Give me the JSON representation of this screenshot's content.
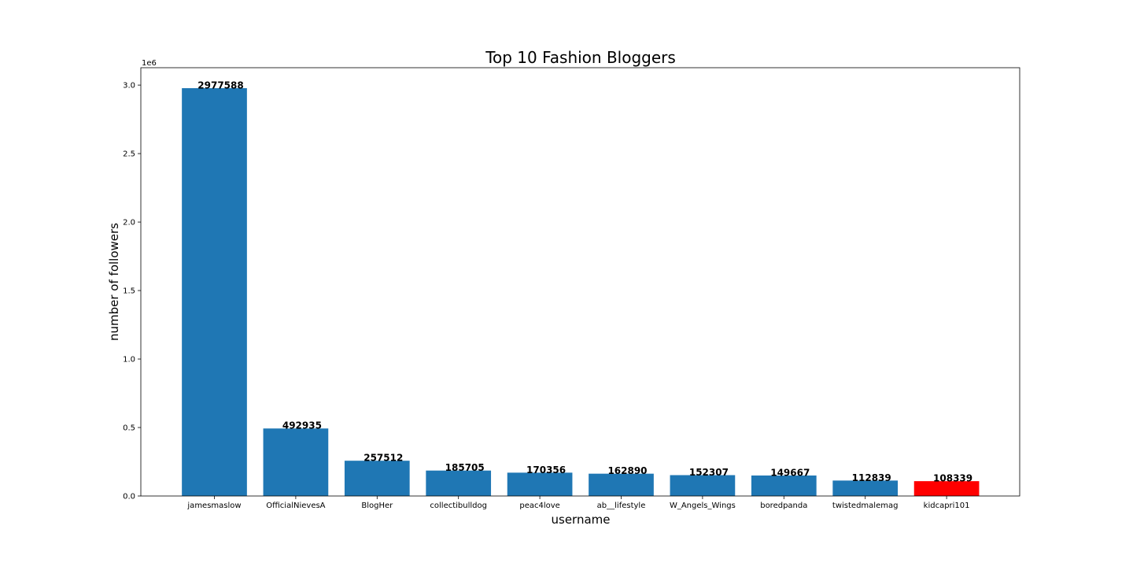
{
  "chart_data": {
    "type": "bar",
    "title": "Top 10 Fashion Bloggers",
    "xlabel": "username",
    "ylabel": "number of followers",
    "y_offset_label": "1e6",
    "categories": [
      "jamesmaslow",
      "OfficialNievesA",
      "BlogHer",
      "collectibulldog",
      "peac4love",
      "ab__lifestyle",
      "W_Angels_Wings",
      "boredpanda",
      "twistedmalemag",
      "kidcapri101"
    ],
    "values": [
      2977588,
      492935,
      257512,
      185705,
      170356,
      162890,
      152307,
      149667,
      112839,
      108339
    ],
    "data_labels": [
      "2977588",
      "492935",
      "257512",
      "185705",
      "170356",
      "162890",
      "152307",
      "149667",
      "112839",
      "108339"
    ],
    "bar_colors": [
      "#1f77b4",
      "#1f77b4",
      "#1f77b4",
      "#1f77b4",
      "#1f77b4",
      "#1f77b4",
      "#1f77b4",
      "#1f77b4",
      "#1f77b4",
      "#ff0000"
    ],
    "ylim": [
      0,
      3126967
    ],
    "yticks": [
      0,
      500000,
      1000000,
      1500000,
      2000000,
      2500000,
      3000000
    ],
    "ytick_labels": [
      "0.0",
      "0.5",
      "1.0",
      "1.5",
      "2.0",
      "2.5",
      "3.0"
    ],
    "grid": false,
    "legend": "none"
  }
}
